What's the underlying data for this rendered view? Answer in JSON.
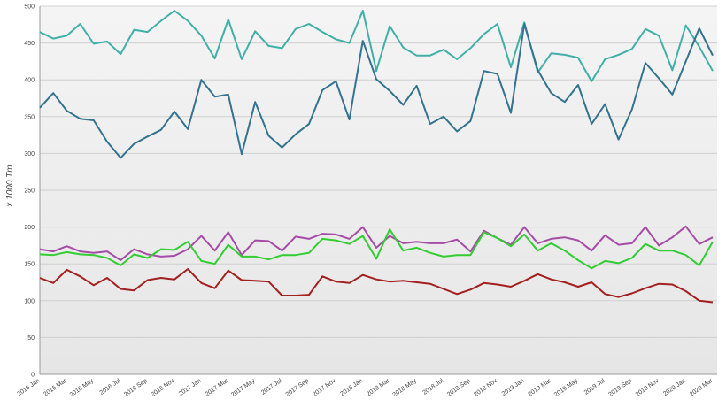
{
  "chart_data": {
    "type": "line",
    "y_label": "x 1000 Tm",
    "categories": [
      "2016 Jan",
      null,
      "2016 Mar",
      null,
      "2016 May",
      null,
      "2016 Jul",
      null,
      "2016 Sep",
      null,
      "2016 Nov",
      null,
      "2017 Jan",
      null,
      "2017 Mar",
      null,
      "2017 May",
      null,
      "2017 Jul",
      null,
      "2017 Sep",
      null,
      "2017 Nov",
      null,
      "2018 Jan",
      null,
      "2018 Mar",
      null,
      "2018 May",
      null,
      "2018 Jul",
      null,
      "2018 Sep",
      null,
      "2018 Nov",
      null,
      "2019 Jan",
      null,
      "2019 Mar",
      null,
      "2019 May",
      null,
      "2019 Jul",
      null,
      "2019 Sep",
      null,
      "2019 Nov",
      null,
      "2020 Jan",
      null,
      "2020 Mar"
    ],
    "series": [
      {
        "color": "#40b0a6",
        "values": [
          465,
          456,
          460,
          476,
          449,
          452,
          435,
          468,
          465,
          480,
          494,
          480,
          460,
          429,
          482,
          428,
          466,
          446,
          443,
          469,
          476,
          465,
          455,
          450,
          494,
          412,
          473,
          444,
          433,
          433,
          441,
          428,
          443,
          462,
          476,
          417,
          478,
          410,
          436,
          434,
          430,
          398,
          428,
          434,
          442,
          469,
          460,
          413,
          474,
          445,
          412
        ]
      },
      {
        "color": "#33738f",
        "values": [
          362,
          382,
          358,
          347,
          345,
          316,
          294,
          313,
          323,
          332,
          357,
          333,
          400,
          377,
          380,
          299,
          370,
          324,
          308,
          326,
          340,
          386,
          398,
          346,
          453,
          401,
          385,
          366,
          392,
          340,
          350,
          330,
          344,
          412,
          408,
          355,
          476,
          413,
          382,
          370,
          393,
          340,
          367,
          319,
          360,
          423,
          402,
          380,
          425,
          470,
          433
        ]
      },
      {
        "color": "#a64ca6",
        "values": [
          170,
          167,
          174,
          167,
          165,
          167,
          155,
          170,
          163,
          160,
          161,
          170,
          188,
          168,
          193,
          162,
          182,
          181,
          168,
          187,
          184,
          191,
          190,
          184,
          200,
          172,
          188,
          178,
          180,
          178,
          178,
          183,
          167,
          195,
          185,
          176,
          200,
          178,
          184,
          186,
          182,
          168,
          189,
          176,
          178,
          200,
          175,
          186,
          201,
          177,
          186
        ]
      },
      {
        "color": "#33cc33",
        "values": [
          163,
          162,
          166,
          163,
          162,
          158,
          148,
          163,
          158,
          170,
          169,
          180,
          154,
          150,
          176,
          160,
          160,
          156,
          162,
          162,
          165,
          184,
          182,
          177,
          188,
          157,
          197,
          168,
          172,
          165,
          160,
          162,
          162,
          193,
          185,
          174,
          190,
          168,
          178,
          168,
          155,
          144,
          154,
          151,
          158,
          177,
          168,
          168,
          162,
          148,
          180
        ]
      },
      {
        "color": "#a32020",
        "values": [
          131,
          124,
          142,
          133,
          121,
          131,
          116,
          114,
          128,
          131,
          129,
          143,
          124,
          117,
          141,
          128,
          127,
          126,
          107,
          107,
          108,
          133,
          126,
          124,
          135,
          129,
          126,
          127,
          125,
          123,
          116,
          109,
          115,
          124,
          122,
          119,
          127,
          136,
          129,
          125,
          119,
          125,
          109,
          105,
          110,
          117,
          123,
          122,
          113,
          100,
          98
        ]
      }
    ],
    "ylim": [
      0,
      500
    ],
    "yticks": [
      0,
      50,
      100,
      150,
      200,
      250,
      300,
      350,
      400,
      450,
      500
    ],
    "grid": true
  }
}
